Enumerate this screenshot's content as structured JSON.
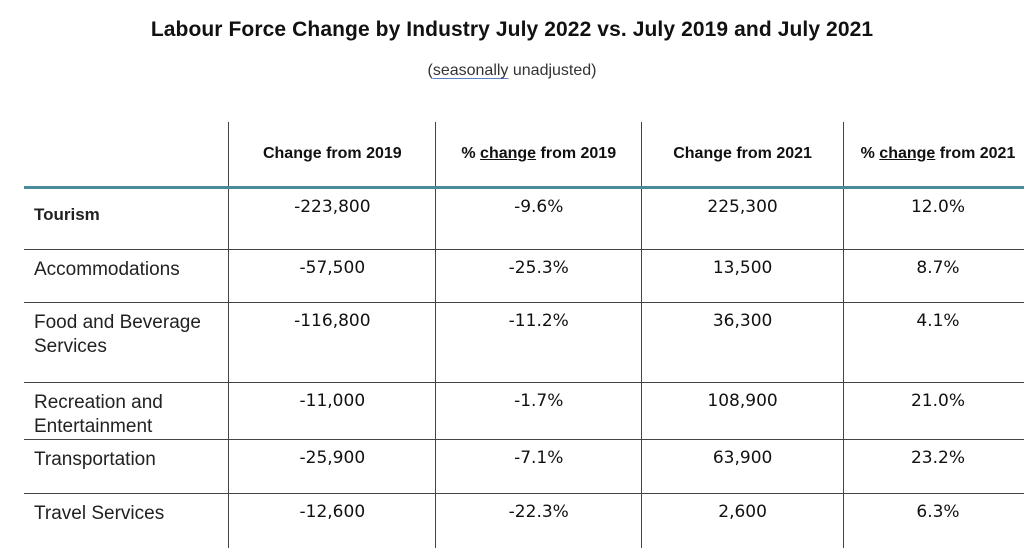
{
  "title": "Labour Force Change by Industry July 2022 vs. July 2019 and July 2021",
  "subtitle": {
    "open_paren": "(",
    "underlined_word": "seasonally",
    "rest": " unadjusted)"
  },
  "table": {
    "headers": [
      {
        "text": ""
      },
      {
        "text": "Change from 2019"
      },
      {
        "prefix": "% ",
        "underlined": "change",
        "suffix": " from 2019"
      },
      {
        "text": "Change from 2021"
      },
      {
        "prefix": "% ",
        "underlined": "change",
        "suffix": " from 2021"
      }
    ],
    "rows": [
      {
        "industry": "Tourism",
        "change_2019": "-223,800",
        "pct_2019": "-9.6%",
        "change_2021": "225,300",
        "pct_2021": "12.0%"
      },
      {
        "industry": "Accommodations",
        "change_2019": "-57,500",
        "pct_2019": "-25.3%",
        "change_2021": "13,500",
        "pct_2021": "8.7%"
      },
      {
        "industry": "Food and Beverage Services",
        "change_2019": "-116,800",
        "pct_2019": "-11.2%",
        "change_2021": "36,300",
        "pct_2021": "4.1%"
      },
      {
        "industry": "Recreation and Entertainment",
        "change_2019": "-11,000",
        "pct_2019": "-1.7%",
        "change_2021": "108,900",
        "pct_2021": "21.0%"
      },
      {
        "industry": "Transportation",
        "change_2019": "-25,900",
        "pct_2019": "-7.1%",
        "change_2021": "63,900",
        "pct_2021": "23.2%"
      },
      {
        "industry": "Travel Services",
        "change_2019": "-12,600",
        "pct_2019": "-22.3%",
        "change_2021": "2,600",
        "pct_2021": "6.3%"
      }
    ]
  },
  "colors": {
    "header_rule": "#4a8a9b",
    "subtitle_underline": "#5b7fbf"
  }
}
